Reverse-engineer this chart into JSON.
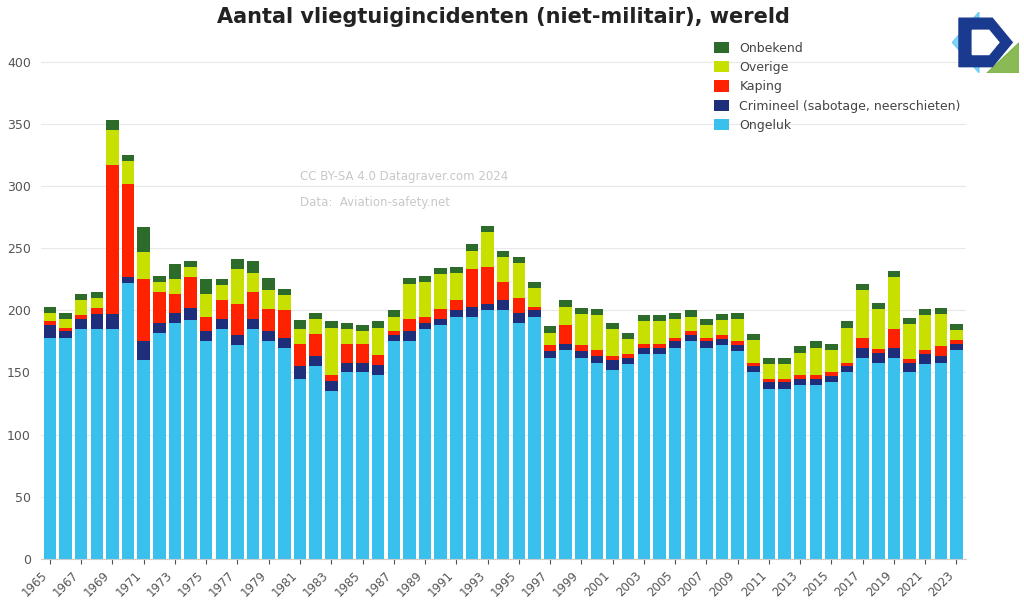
{
  "title": "Aantal vliegtuigincidenten (niet-militair), wereld",
  "years": [
    1965,
    1966,
    1967,
    1968,
    1969,
    1970,
    1971,
    1972,
    1973,
    1974,
    1975,
    1976,
    1977,
    1978,
    1979,
    1980,
    1981,
    1982,
    1983,
    1984,
    1985,
    1986,
    1987,
    1988,
    1989,
    1990,
    1991,
    1992,
    1993,
    1994,
    1995,
    1996,
    1997,
    1998,
    1999,
    2000,
    2001,
    2002,
    2003,
    2004,
    2005,
    2006,
    2007,
    2008,
    2009,
    2010,
    2011,
    2012,
    2013,
    2014,
    2015,
    2016,
    2017,
    2018,
    2019,
    2020,
    2021,
    2022,
    2023
  ],
  "ongeluk": [
    178,
    178,
    185,
    185,
    185,
    222,
    160,
    182,
    190,
    192,
    175,
    185,
    172,
    185,
    175,
    170,
    145,
    155,
    135,
    150,
    150,
    148,
    175,
    175,
    185,
    188,
    195,
    195,
    200,
    200,
    190,
    195,
    162,
    168,
    162,
    158,
    152,
    157,
    165,
    165,
    170,
    175,
    170,
    172,
    167,
    150,
    137,
    137,
    140,
    140,
    142,
    150,
    162,
    158,
    162,
    150,
    157,
    158,
    168
  ],
  "crimineel": [
    10,
    5,
    8,
    12,
    12,
    5,
    15,
    8,
    8,
    10,
    8,
    8,
    8,
    8,
    8,
    8,
    10,
    8,
    8,
    8,
    8,
    8,
    5,
    8,
    5,
    5,
    5,
    8,
    5,
    8,
    8,
    5,
    5,
    5,
    5,
    5,
    8,
    5,
    5,
    5,
    5,
    5,
    5,
    5,
    5,
    5,
    5,
    5,
    5,
    5,
    5,
    5,
    8,
    8,
    8,
    8,
    8,
    5,
    5
  ],
  "kaping": [
    3,
    3,
    3,
    5,
    120,
    75,
    50,
    25,
    15,
    25,
    12,
    15,
    25,
    22,
    18,
    22,
    18,
    18,
    5,
    15,
    15,
    8,
    3,
    10,
    5,
    8,
    8,
    30,
    30,
    15,
    12,
    3,
    5,
    15,
    5,
    5,
    3,
    3,
    3,
    3,
    3,
    3,
    3,
    3,
    3,
    3,
    3,
    3,
    3,
    3,
    3,
    3,
    8,
    3,
    15,
    3,
    3,
    8,
    3
  ],
  "overige": [
    7,
    7,
    12,
    8,
    28,
    18,
    22,
    8,
    12,
    8,
    18,
    12,
    28,
    15,
    15,
    12,
    12,
    12,
    38,
    12,
    10,
    22,
    12,
    28,
    28,
    28,
    22,
    15,
    28,
    20,
    28,
    15,
    10,
    15,
    25,
    28,
    22,
    12,
    18,
    18,
    15,
    12,
    10,
    12,
    18,
    18,
    12,
    12,
    18,
    22,
    18,
    28,
    38,
    32,
    42,
    28,
    28,
    26,
    8
  ],
  "onbekend": [
    5,
    5,
    5,
    5,
    8,
    5,
    20,
    5,
    12,
    5,
    12,
    5,
    8,
    10,
    10,
    5,
    7,
    5,
    5,
    5,
    5,
    5,
    5,
    5,
    5,
    5,
    5,
    5,
    5,
    5,
    5,
    5,
    5,
    5,
    5,
    5,
    5,
    5,
    5,
    5,
    5,
    5,
    5,
    5,
    5,
    5,
    5,
    5,
    5,
    5,
    5,
    5,
    5,
    5,
    5,
    5,
    5,
    5,
    5
  ],
  "color_ongeluk": "#39c0ed",
  "color_crimineel": "#1f2e7a",
  "color_kaping": "#ff2200",
  "color_overige": "#c8e000",
  "color_onbekend": "#2d6b2a",
  "legend_labels": [
    "Onbekend",
    "Overige",
    "Kaping",
    "Crimineel (sabotage, neerschieten)",
    "Ongeluk"
  ],
  "xtick_years": [
    1965,
    1967,
    1969,
    1971,
    1973,
    1975,
    1977,
    1979,
    1981,
    1983,
    1985,
    1987,
    1989,
    1991,
    1993,
    1995,
    1997,
    1999,
    2001,
    2003,
    2005,
    2007,
    2009,
    2011,
    2013,
    2015,
    2017,
    2019,
    2021,
    2023
  ],
  "watermark_line1": "CC BY-SA 4.0 Datagraver.com 2024",
  "watermark_line2": "Data:  Aviation-safety.net",
  "ylim": [
    0,
    420
  ],
  "yticks": [
    0,
    50,
    100,
    150,
    200,
    250,
    300,
    350,
    400
  ],
  "background_color": "#ffffff",
  "grid_color": "#e8e8e8",
  "bar_width": 0.8
}
